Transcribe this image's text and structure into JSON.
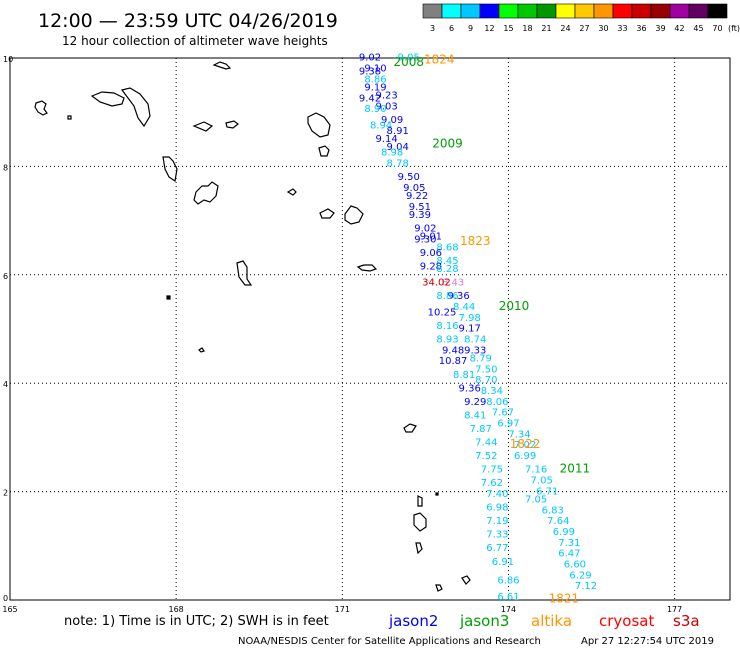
{
  "header": {
    "title": "12:00 — 23:59 UTC 04/26/2019",
    "subtitle": "12 hour collection of altimeter wave heights"
  },
  "legend": {
    "unit_label": "(ft)",
    "bins": [
      {
        "label": "3",
        "color": "#808080"
      },
      {
        "label": "6",
        "color": "#00ffff"
      },
      {
        "label": "9",
        "color": "#00c8ff"
      },
      {
        "label": "12",
        "color": "#0000ff"
      },
      {
        "label": "15",
        "color": "#00ff00"
      },
      {
        "label": "18",
        "color": "#00c800"
      },
      {
        "label": "21",
        "color": "#009600"
      },
      {
        "label": "24",
        "color": "#ffff00"
      },
      {
        "label": "27",
        "color": "#ffc800"
      },
      {
        "label": "30",
        "color": "#ff9600"
      },
      {
        "label": "33",
        "color": "#ff0000"
      },
      {
        "label": "36",
        "color": "#c80000"
      },
      {
        "label": "39",
        "color": "#960000"
      },
      {
        "label": "42",
        "color": "#a000a0"
      },
      {
        "label": "45",
        "color": "#600060"
      },
      {
        "label": "70",
        "color": "#000000"
      }
    ]
  },
  "map": {
    "lon_range": [
      165,
      178
    ],
    "lat_range": [
      0,
      10
    ],
    "lon_ticks": [
      {
        "value": 165,
        "label": "165"
      },
      {
        "value": 168,
        "label": "168"
      },
      {
        "value": 171,
        "label": "171"
      },
      {
        "value": 174,
        "label": "174"
      },
      {
        "value": 177,
        "label": "177"
      }
    ],
    "lat_ticks": [
      {
        "value": 0,
        "label": "0"
      },
      {
        "value": 2,
        "label": "2"
      },
      {
        "value": 4,
        "label": "4"
      },
      {
        "value": 6,
        "label": "6"
      },
      {
        "value": 8,
        "label": "8"
      },
      {
        "value": 10,
        "label": "10"
      }
    ],
    "grid": true,
    "land_color": "#000000"
  },
  "chart_data": {
    "type": "scatter",
    "x_axis": "longitude",
    "y_axis": "latitude",
    "units": "ft",
    "points": [
      {
        "x": 171.5,
        "y": 9.95,
        "v": "9.02",
        "c": "#0000ff"
      },
      {
        "x": 172.2,
        "y": 9.95,
        "v": "9.05",
        "c": "#00c8ff"
      },
      {
        "x": 171.6,
        "y": 9.75,
        "v": "9.10",
        "c": "#0000ff"
      },
      {
        "x": 171.5,
        "y": 9.7,
        "v": "9.38",
        "c": "#0000ff"
      },
      {
        "x": 171.6,
        "y": 9.55,
        "v": "8.86",
        "c": "#00c8ff"
      },
      {
        "x": 171.6,
        "y": 9.4,
        "v": "9.19",
        "c": "#0000ff"
      },
      {
        "x": 171.8,
        "y": 9.25,
        "v": "9.23",
        "c": "#0000ff"
      },
      {
        "x": 171.5,
        "y": 9.2,
        "v": "9.42",
        "c": "#0000ff"
      },
      {
        "x": 171.8,
        "y": 9.05,
        "v": "9.03",
        "c": "#0000ff"
      },
      {
        "x": 171.6,
        "y": 9.0,
        "v": "8.90",
        "c": "#00c8ff"
      },
      {
        "x": 171.9,
        "y": 8.8,
        "v": "9.09",
        "c": "#0000ff"
      },
      {
        "x": 171.7,
        "y": 8.7,
        "v": "8.94",
        "c": "#00c8ff"
      },
      {
        "x": 172.0,
        "y": 8.6,
        "v": "8.91",
        "c": "#0000ff"
      },
      {
        "x": 171.8,
        "y": 8.45,
        "v": "9.14",
        "c": "#0000ff"
      },
      {
        "x": 172.0,
        "y": 8.3,
        "v": "9.04",
        "c": "#0000ff"
      },
      {
        "x": 171.9,
        "y": 8.2,
        "v": "8.98",
        "c": "#00c8ff"
      },
      {
        "x": 172.0,
        "y": 8.0,
        "v": "8.78",
        "c": "#00c8ff"
      },
      {
        "x": 172.2,
        "y": 7.75,
        "v": "9.50",
        "c": "#0000ff"
      },
      {
        "x": 172.3,
        "y": 7.55,
        "v": "9.05",
        "c": "#0000ff"
      },
      {
        "x": 172.35,
        "y": 7.4,
        "v": "9.22",
        "c": "#0000ff"
      },
      {
        "x": 172.4,
        "y": 7.2,
        "v": "9.51",
        "c": "#0000ff"
      },
      {
        "x": 172.4,
        "y": 7.05,
        "v": "9.39",
        "c": "#0000ff"
      },
      {
        "x": 172.5,
        "y": 6.8,
        "v": "9.02",
        "c": "#0000ff"
      },
      {
        "x": 172.6,
        "y": 6.65,
        "v": "9.01",
        "c": "#0000ff"
      },
      {
        "x": 172.5,
        "y": 6.6,
        "v": "9.30",
        "c": "#0000ff"
      },
      {
        "x": 172.9,
        "y": 6.45,
        "v": "8.68",
        "c": "#00c8ff"
      },
      {
        "x": 172.6,
        "y": 6.35,
        "v": "9.06",
        "c": "#0000ff"
      },
      {
        "x": 172.9,
        "y": 6.2,
        "v": "8.45",
        "c": "#00c8ff"
      },
      {
        "x": 172.6,
        "y": 6.1,
        "v": "9.28",
        "c": "#0000ff"
      },
      {
        "x": 172.9,
        "y": 6.05,
        "v": "8.28",
        "c": "#00c8ff"
      },
      {
        "x": 173.0,
        "y": 5.8,
        "v": "8.43",
        "c": "#d080d0"
      },
      {
        "x": 172.7,
        "y": 5.8,
        "v": "34.02",
        "c": "#c80000"
      },
      {
        "x": 173.1,
        "y": 5.55,
        "v": "9.36",
        "c": "#0000ff"
      },
      {
        "x": 172.9,
        "y": 5.55,
        "v": "8.86",
        "c": "#00c8ff"
      },
      {
        "x": 173.2,
        "y": 5.35,
        "v": "8.44",
        "c": "#00c8ff"
      },
      {
        "x": 172.8,
        "y": 5.25,
        "v": "10.25",
        "c": "#0000ff"
      },
      {
        "x": 173.3,
        "y": 5.15,
        "v": "7.98",
        "c": "#00c8ff"
      },
      {
        "x": 172.9,
        "y": 5.0,
        "v": "8.16",
        "c": "#00c8ff"
      },
      {
        "x": 173.3,
        "y": 4.95,
        "v": "9.17",
        "c": "#0000ff"
      },
      {
        "x": 173.4,
        "y": 4.75,
        "v": "8.74",
        "c": "#00c8ff"
      },
      {
        "x": 172.9,
        "y": 4.75,
        "v": "8.93",
        "c": "#00c8ff"
      },
      {
        "x": 173.4,
        "y": 4.55,
        "v": "9.33",
        "c": "#0000ff"
      },
      {
        "x": 173.0,
        "y": 4.55,
        "v": "9.48",
        "c": "#0000ff"
      },
      {
        "x": 173.5,
        "y": 4.4,
        "v": "8.79",
        "c": "#00c8ff"
      },
      {
        "x": 173.0,
        "y": 4.35,
        "v": "10.87",
        "c": "#0000ff"
      },
      {
        "x": 173.6,
        "y": 4.2,
        "v": "7.50",
        "c": "#00c8ff"
      },
      {
        "x": 173.2,
        "y": 4.1,
        "v": "8.81",
        "c": "#00c8ff"
      },
      {
        "x": 173.6,
        "y": 4.0,
        "v": "8.70",
        "c": "#00c8ff"
      },
      {
        "x": 173.3,
        "y": 3.85,
        "v": "9.36",
        "c": "#0000ff"
      },
      {
        "x": 173.7,
        "y": 3.8,
        "v": "8.34",
        "c": "#00c8ff"
      },
      {
        "x": 173.8,
        "y": 3.6,
        "v": "8.06",
        "c": "#00c8ff"
      },
      {
        "x": 173.4,
        "y": 3.6,
        "v": "9.29",
        "c": "#0000ff"
      },
      {
        "x": 173.9,
        "y": 3.4,
        "v": "7.67",
        "c": "#00c8ff"
      },
      {
        "x": 173.4,
        "y": 3.35,
        "v": "8.41",
        "c": "#00c8ff"
      },
      {
        "x": 174.0,
        "y": 3.2,
        "v": "6.97",
        "c": "#00c8ff"
      },
      {
        "x": 173.5,
        "y": 3.1,
        "v": "7.87",
        "c": "#00c8ff"
      },
      {
        "x": 174.2,
        "y": 3.0,
        "v": "7.34",
        "c": "#00c8ff"
      },
      {
        "x": 173.6,
        "y": 2.85,
        "v": "7.44",
        "c": "#00c8ff"
      },
      {
        "x": 174.3,
        "y": 2.8,
        "v": "7.02",
        "c": "#00c8ff"
      },
      {
        "x": 174.3,
        "y": 2.6,
        "v": "6.99",
        "c": "#00c8ff"
      },
      {
        "x": 173.6,
        "y": 2.6,
        "v": "7.52",
        "c": "#00c8ff"
      },
      {
        "x": 174.5,
        "y": 2.35,
        "v": "7.16",
        "c": "#00c8ff"
      },
      {
        "x": 173.7,
        "y": 2.35,
        "v": "7.75",
        "c": "#00c8ff"
      },
      {
        "x": 174.6,
        "y": 2.15,
        "v": "7.05",
        "c": "#00c8ff"
      },
      {
        "x": 173.7,
        "y": 2.1,
        "v": "7.62",
        "c": "#00c8ff"
      },
      {
        "x": 174.7,
        "y": 1.95,
        "v": "6.71",
        "c": "#00c8ff"
      },
      {
        "x": 173.8,
        "y": 1.9,
        "v": "7.40",
        "c": "#00c8ff"
      },
      {
        "x": 174.5,
        "y": 1.8,
        "v": "7.05",
        "c": "#00c8ff"
      },
      {
        "x": 173.8,
        "y": 1.65,
        "v": "6.98",
        "c": "#00c8ff"
      },
      {
        "x": 174.8,
        "y": 1.6,
        "v": "6.83",
        "c": "#00c8ff"
      },
      {
        "x": 173.8,
        "y": 1.4,
        "v": "7.19",
        "c": "#00c8ff"
      },
      {
        "x": 174.9,
        "y": 1.4,
        "v": "7.64",
        "c": "#00c8ff"
      },
      {
        "x": 175.0,
        "y": 1.2,
        "v": "6.99",
        "c": "#00c8ff"
      },
      {
        "x": 173.8,
        "y": 1.15,
        "v": "7.33",
        "c": "#00c8ff"
      },
      {
        "x": 175.1,
        "y": 1.0,
        "v": "7.31",
        "c": "#00c8ff"
      },
      {
        "x": 173.8,
        "y": 0.9,
        "v": "6.77",
        "c": "#00c8ff"
      },
      {
        "x": 175.1,
        "y": 0.8,
        "v": "6.47",
        "c": "#00c8ff"
      },
      {
        "x": 173.9,
        "y": 0.65,
        "v": "6.91",
        "c": "#00c8ff"
      },
      {
        "x": 175.2,
        "y": 0.6,
        "v": "6.60",
        "c": "#00c8ff"
      },
      {
        "x": 175.3,
        "y": 0.4,
        "v": "6.29",
        "c": "#00c8ff"
      },
      {
        "x": 174.0,
        "y": 0.3,
        "v": "6.86",
        "c": "#00c8ff"
      },
      {
        "x": 175.4,
        "y": 0.2,
        "v": "7.12",
        "c": "#00c8ff"
      },
      {
        "x": 174.0,
        "y": 0.0,
        "v": "6.61",
        "c": "#00c8ff"
      }
    ],
    "labels": [
      {
        "x": 172.2,
        "y": 9.85,
        "text": "2008",
        "c": "#00a000"
      },
      {
        "x": 172.75,
        "y": 9.9,
        "text": "1824",
        "c": "#ff9600"
      },
      {
        "x": 172.9,
        "y": 8.35,
        "text": "2009",
        "c": "#00a000"
      },
      {
        "x": 173.4,
        "y": 6.55,
        "text": "1823",
        "c": "#ff9600"
      },
      {
        "x": 174.1,
        "y": 5.35,
        "text": "2010",
        "c": "#00a000"
      },
      {
        "x": 174.3,
        "y": 2.8,
        "text": "1822",
        "c": "#ff9600"
      },
      {
        "x": 175.2,
        "y": 2.35,
        "text": "2011",
        "c": "#00a000"
      },
      {
        "x": 175.0,
        "y": -0.05,
        "text": "1821",
        "c": "#ff9600"
      }
    ]
  },
  "footer": {
    "note": "note:  1) Time is in UTC; 2) SWH is in feet",
    "satellites": [
      {
        "label": "jason2",
        "color": "#0000ff"
      },
      {
        "label": "jason3",
        "color": "#00a000"
      },
      {
        "label": "altika",
        "color": "#ff9600"
      },
      {
        "label": "cryosat",
        "color": "#ff0000"
      },
      {
        "label": "s3a",
        "color": "#c80000"
      }
    ],
    "credit": "NOAA/NESDIS Center for Satellite Applications and Research",
    "timestamp": "Apr 27 12:27:54 UTC 2019"
  }
}
